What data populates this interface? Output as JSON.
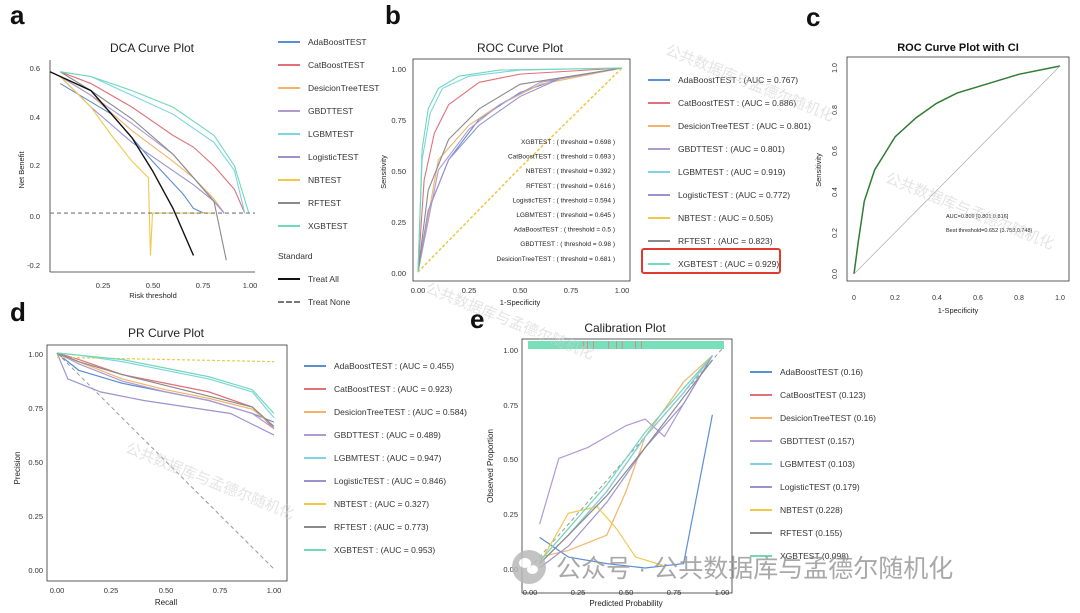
{
  "panel_letters": {
    "a": "a",
    "b": "b",
    "c": "c",
    "d": "d",
    "e": "e"
  },
  "colors": {
    "AdaBoostTEST": "#5b8fd4",
    "CatBoostTEST": "#e0707a",
    "DesicionTreeTEST": "#f2b46a",
    "GBDTTEST": "#b09ad2",
    "LGBMTEST": "#7fd3e6",
    "LogisticTEST": "#9b93cf",
    "NBTEST": "#f0c84a",
    "RFTEST": "#8a8a8a",
    "XGBTEST": "#6fd9b8",
    "highlight": "#e03a2f",
    "ci_curve": "#2e7d32"
  },
  "dca": {
    "title": "DCA Curve Plot",
    "xlabel": "Risk threshold",
    "ylabel": "Net Benefit",
    "xticks": [
      "0.25",
      "0.50",
      "0.75",
      "1.00"
    ],
    "yticks": [
      "0.6",
      "0.4",
      "0.2",
      "0.0",
      "-0.2"
    ],
    "legend": [
      "AdaBoostTEST",
      "CatBoostTEST",
      "DesicionTreeTEST",
      "GBDTTEST",
      "LGBMTEST",
      "LogisticTEST",
      "NBTEST",
      "RFTEST",
      "XGBTEST"
    ],
    "standard_title": "Standard",
    "standard": [
      "Treat All",
      "Treat None"
    ]
  },
  "roc": {
    "title": "ROC Curve Plot",
    "xlabel": "1-Specificity",
    "ylabel": "Sensitivity",
    "xticks": [
      "0.00",
      "0.25",
      "0.50",
      "0.75",
      "1.00"
    ],
    "yticks": [
      "1.00",
      "0.75",
      "0.50",
      "0.25",
      "0.00"
    ],
    "thresholds": [
      "XGBTEST : ( threshold = 0.698 )",
      "CatBoostTEST : ( threshold = 0.693 )",
      "NBTEST : ( threshold = 0.392 )",
      "RFTEST : ( threshold = 0.616 )",
      "LogisticTEST : ( threshold = 0.594 )",
      "LGBMTEST : ( threshold = 0.645 )",
      "AdaBoostTEST : ( threshold = 0.5 )",
      "GBDTTEST : ( threshold = 0.98 )",
      "DesicionTreeTEST : ( threshold = 0.681 )"
    ],
    "legend": [
      "AdaBoostTEST : (AUC = 0.767)",
      "CatBoostTEST : (AUC = 0.886)",
      "DesicionTreeTEST : (AUC = 0.801)",
      "GBDTTEST : (AUC = 0.801)",
      "LGBMTEST : (AUC = 0.919)",
      "LogisticTEST : (AUC = 0.772)",
      "NBTEST : (AUC = 0.505)",
      "RFTEST : (AUC = 0.823)",
      "XGBTEST : (AUC = 0.929)"
    ]
  },
  "roc_ci": {
    "title": "ROC Curve Plot with CI",
    "xlabel": "1-Specificity",
    "ylabel": "Sensitivity",
    "xticks": [
      "0",
      "0.2",
      "0.4",
      "0.6",
      "0.8",
      "1.0"
    ],
    "yticks": [
      "1.0",
      "0.8",
      "0.6",
      "0.4",
      "0.2",
      "0.0"
    ],
    "auc_text": "AUC=0.809 [0.801 0.816]",
    "best_text": "Best threshold=0.652 (3.753,0.748)"
  },
  "pr": {
    "title": "PR Curve Plot",
    "xlabel": "Recall",
    "ylabel": "Precision",
    "xticks": [
      "0.00",
      "0.25",
      "0.50",
      "0.75",
      "1.00"
    ],
    "yticks": [
      "1.00",
      "0.75",
      "0.50",
      "0.25",
      "0.00"
    ],
    "legend": [
      "AdaBoostTEST : (AUC = 0.455)",
      "CatBoostTEST : (AUC = 0.923)",
      "DesicionTreeTEST : (AUC = 0.584)",
      "GBDTTEST : (AUC = 0.489)",
      "LGBMTEST : (AUC = 0.947)",
      "LogisticTEST : (AUC = 0.846)",
      "NBTEST : (AUC = 0.327)",
      "RFTEST : (AUC = 0.773)",
      "XGBTEST : (AUC = 0.953)"
    ]
  },
  "calib": {
    "title": "Calibration Plot",
    "xlabel": "Predicted Probability",
    "ylabel": "Observed Proportion",
    "xticks": [
      "0.00",
      "0.25",
      "0.50",
      "0.75",
      "1.00"
    ],
    "yticks": [
      "1.00",
      "0.75",
      "0.50",
      "0.25",
      "0.00"
    ],
    "legend": [
      "AdaBoostTEST (0.16)",
      "CatBoostTEST (0.123)",
      "DesicionTreeTEST (0.16)",
      "GBDTTEST (0.157)",
      "LGBMTEST (0.103)",
      "LogisticTEST (0.179)",
      "NBTEST (0.228)",
      "RFTEST (0.155)",
      "XGBTEST (0.098)"
    ]
  },
  "watermark": {
    "diag": "公共数据库与孟德尔随机化",
    "banner": "公众号 · 公共数据库与孟德尔随机化"
  },
  "chart_data": [
    {
      "type": "line",
      "title": "DCA Curve Plot",
      "xlabel": "Risk threshold",
      "ylabel": "Net Benefit",
      "xlim": [
        0,
        1
      ],
      "ylim": [
        -0.25,
        0.65
      ],
      "grid": false,
      "legend_position": "right",
      "series": [
        {
          "name": "AdaBoostTEST",
          "x": [
            0.05,
            0.3,
            0.5,
            0.65,
            0.7,
            0.75
          ],
          "y": [
            0.55,
            0.42,
            0.22,
            0.08,
            0.02,
            0.0
          ]
        },
        {
          "name": "CatBoostTEST",
          "x": [
            0.05,
            0.2,
            0.4,
            0.6,
            0.7,
            0.8,
            0.85,
            0.9,
            0.95
          ],
          "y": [
            0.6,
            0.55,
            0.45,
            0.33,
            0.28,
            0.2,
            0.15,
            0.1,
            0.0
          ]
        },
        {
          "name": "DesicionTreeTEST",
          "x": [
            0.05,
            0.2,
            0.4,
            0.6,
            0.7,
            0.8,
            0.85
          ],
          "y": [
            0.58,
            0.5,
            0.35,
            0.22,
            0.15,
            0.06,
            0.0
          ]
        },
        {
          "name": "GBDTTEST",
          "x": [
            0.05,
            0.2,
            0.4,
            0.6,
            0.7,
            0.8,
            0.85
          ],
          "y": [
            0.58,
            0.5,
            0.38,
            0.25,
            0.15,
            0.05,
            0.0
          ]
        },
        {
          "name": "LGBMTEST",
          "x": [
            0.05,
            0.2,
            0.4,
            0.6,
            0.8,
            0.9,
            0.95
          ],
          "y": [
            0.6,
            0.58,
            0.5,
            0.42,
            0.3,
            0.18,
            0.0
          ]
        },
        {
          "name": "LogisticTEST",
          "x": [
            0.05,
            0.2,
            0.4,
            0.6,
            0.7,
            0.8,
            0.85
          ],
          "y": [
            0.58,
            0.45,
            0.3,
            0.18,
            0.12,
            0.05,
            0.0
          ]
        },
        {
          "name": "NBTEST",
          "x": [
            0.05,
            0.2,
            0.3,
            0.4,
            0.48,
            0.49,
            0.5,
            0.8
          ],
          "y": [
            0.58,
            0.45,
            0.33,
            0.22,
            0.15,
            -0.18,
            0.0,
            0.0
          ]
        },
        {
          "name": "RFTEST",
          "x": [
            0.05,
            0.2,
            0.4,
            0.6,
            0.7,
            0.8,
            0.86
          ],
          "y": [
            0.6,
            0.52,
            0.4,
            0.25,
            0.15,
            0.05,
            -0.2
          ]
        },
        {
          "name": "XGBTEST",
          "x": [
            0.05,
            0.2,
            0.4,
            0.6,
            0.8,
            0.9,
            0.97
          ],
          "y": [
            0.6,
            0.58,
            0.52,
            0.45,
            0.33,
            0.2,
            0.0
          ]
        },
        {
          "name": "Treat All",
          "x": [
            0.0,
            0.2,
            0.4,
            0.5,
            0.6,
            0.7
          ],
          "y": [
            0.6,
            0.52,
            0.32,
            0.18,
            0.02,
            -0.18
          ]
        },
        {
          "name": "Treat None",
          "x": [
            0,
            1
          ],
          "y": [
            0,
            0
          ]
        }
      ]
    },
    {
      "type": "line",
      "title": "ROC Curve Plot",
      "xlabel": "1-Specificity",
      "ylabel": "Sensitivity",
      "xlim": [
        0,
        1
      ],
      "ylim": [
        0,
        1
      ],
      "grid": false,
      "legend_position": "right",
      "series": [
        {
          "name": "AdaBoostTEST",
          "x": [
            0,
            0.05,
            0.15,
            0.3,
            0.5,
            0.7,
            1
          ],
          "y": [
            0,
            0.3,
            0.55,
            0.75,
            0.88,
            0.95,
            1
          ]
        },
        {
          "name": "CatBoostTEST",
          "x": [
            0,
            0.03,
            0.08,
            0.15,
            0.3,
            0.5,
            1
          ],
          "y": [
            0,
            0.45,
            0.68,
            0.82,
            0.93,
            0.97,
            1
          ]
        },
        {
          "name": "DesicionTreeTEST",
          "x": [
            0,
            0.1,
            0.25,
            0.4,
            0.6,
            1
          ],
          "y": [
            0,
            0.55,
            0.72,
            0.82,
            0.92,
            1
          ]
        },
        {
          "name": "GBDTTEST",
          "x": [
            0,
            0.1,
            0.25,
            0.4,
            0.6,
            1
          ],
          "y": [
            0,
            0.5,
            0.7,
            0.82,
            0.93,
            1
          ]
        },
        {
          "name": "LGBMTEST",
          "x": [
            0,
            0.02,
            0.06,
            0.12,
            0.25,
            0.5,
            1
          ],
          "y": [
            0,
            0.55,
            0.78,
            0.9,
            0.96,
            0.99,
            1
          ]
        },
        {
          "name": "LogisticTEST",
          "x": [
            0,
            0.05,
            0.15,
            0.3,
            0.5,
            0.7,
            1
          ],
          "y": [
            0,
            0.3,
            0.55,
            0.72,
            0.86,
            0.95,
            1
          ]
        },
        {
          "name": "NBTEST",
          "x": [
            0,
            0.5,
            1
          ],
          "y": [
            0,
            0.51,
            1
          ]
        },
        {
          "name": "RFTEST",
          "x": [
            0,
            0.05,
            0.15,
            0.3,
            0.5,
            1
          ],
          "y": [
            0,
            0.4,
            0.65,
            0.8,
            0.92,
            1
          ]
        },
        {
          "name": "XGBTEST",
          "x": [
            0,
            0.02,
            0.05,
            0.1,
            0.2,
            0.4,
            1
          ],
          "y": [
            0,
            0.6,
            0.8,
            0.9,
            0.96,
            0.99,
            1
          ]
        }
      ]
    },
    {
      "type": "line",
      "title": "ROC Curve Plot with CI",
      "xlabel": "1-Specificity",
      "ylabel": "Sensitivity",
      "xlim": [
        0,
        1
      ],
      "ylim": [
        0,
        1
      ],
      "grid": false,
      "series": [
        {
          "x": [
            0,
            0.02,
            0.05,
            0.1,
            0.15,
            0.2,
            0.3,
            0.4,
            0.5,
            0.6,
            0.8,
            1.0
          ],
          "y": [
            0,
            0.15,
            0.35,
            0.5,
            0.58,
            0.66,
            0.75,
            0.82,
            0.87,
            0.9,
            0.96,
            1.0
          ]
        },
        {
          "x": [
            0,
            1
          ],
          "y": [
            0,
            1
          ]
        }
      ]
    },
    {
      "type": "line",
      "title": "PR Curve Plot",
      "xlabel": "Recall",
      "ylabel": "Precision",
      "xlim": [
        0,
        1
      ],
      "ylim": [
        0,
        1
      ],
      "grid": false,
      "legend_position": "right",
      "series": [
        {
          "name": "AdaBoostTEST",
          "x": [
            0,
            0.1,
            0.3,
            0.5,
            0.7,
            0.9,
            1.0
          ],
          "y": [
            1,
            0.92,
            0.86,
            0.82,
            0.78,
            0.72,
            0.68
          ]
        },
        {
          "name": "CatBoostTEST",
          "x": [
            0,
            0.1,
            0.3,
            0.5,
            0.7,
            0.9,
            1.0
          ],
          "y": [
            1,
            0.97,
            0.9,
            0.86,
            0.82,
            0.75,
            0.65
          ]
        },
        {
          "name": "DesicionTreeTEST",
          "x": [
            0,
            0.1,
            0.3,
            0.5,
            0.7,
            0.9,
            1.0
          ],
          "y": [
            1,
            0.96,
            0.88,
            0.83,
            0.79,
            0.74,
            0.66
          ]
        },
        {
          "name": "GBDTTEST",
          "x": [
            0,
            0.1,
            0.3,
            0.5,
            0.7,
            0.9,
            1.0
          ],
          "y": [
            1,
            0.95,
            0.87,
            0.82,
            0.78,
            0.72,
            0.65
          ]
        },
        {
          "name": "LGBMTEST",
          "x": [
            0,
            0.1,
            0.3,
            0.5,
            0.7,
            0.9,
            1.0
          ],
          "y": [
            1,
            0.99,
            0.96,
            0.92,
            0.88,
            0.82,
            0.7
          ]
        },
        {
          "name": "LogisticTEST",
          "x": [
            0,
            0.05,
            0.2,
            0.4,
            0.6,
            0.8,
            1.0
          ],
          "y": [
            1,
            0.88,
            0.82,
            0.78,
            0.75,
            0.72,
            0.62
          ]
        },
        {
          "name": "NBTEST",
          "x": [
            0,
            1
          ],
          "y": [
            0.98,
            0.96
          ]
        },
        {
          "name": "RFTEST",
          "x": [
            0,
            0.1,
            0.3,
            0.5,
            0.7,
            0.9,
            1.0
          ],
          "y": [
            1,
            0.96,
            0.9,
            0.85,
            0.8,
            0.75,
            0.66
          ]
        },
        {
          "name": "XGBTEST",
          "x": [
            0,
            0.1,
            0.3,
            0.5,
            0.7,
            0.9,
            1.0
          ],
          "y": [
            1,
            0.99,
            0.97,
            0.93,
            0.89,
            0.83,
            0.72
          ]
        }
      ]
    },
    {
      "type": "line",
      "title": "Calibration Plot",
      "xlabel": "Predicted Probability",
      "ylabel": "Observed Proportion",
      "xlim": [
        0,
        1
      ],
      "ylim": [
        0,
        1
      ],
      "grid": false,
      "legend_position": "right",
      "series": [
        {
          "name": "AdaBoostTEST",
          "x": [
            0.05,
            0.2,
            0.4,
            0.6,
            0.8,
            0.95
          ],
          "y": [
            0.14,
            0.05,
            0.02,
            0.0,
            0.02,
            0.7
          ]
        },
        {
          "name": "CatBoostTEST",
          "x": [
            0.05,
            0.2,
            0.4,
            0.6,
            0.8,
            0.95
          ],
          "y": [
            0.02,
            0.15,
            0.35,
            0.6,
            0.8,
            0.97
          ]
        },
        {
          "name": "DesicionTreeTEST",
          "x": [
            0.05,
            0.2,
            0.4,
            0.5,
            0.6,
            0.8,
            0.95
          ],
          "y": [
            0.05,
            0.08,
            0.15,
            0.35,
            0.6,
            0.85,
            0.97
          ]
        },
        {
          "name": "GBDTTEST",
          "x": [
            0.05,
            0.15,
            0.3,
            0.5,
            0.6,
            0.7,
            0.8,
            0.95
          ],
          "y": [
            0.2,
            0.5,
            0.55,
            0.65,
            0.68,
            0.6,
            0.75,
            0.97
          ]
        },
        {
          "name": "LGBMTEST",
          "x": [
            0.05,
            0.2,
            0.4,
            0.6,
            0.8,
            0.95
          ],
          "y": [
            0.02,
            0.15,
            0.35,
            0.6,
            0.8,
            0.97
          ]
        },
        {
          "name": "LogisticTEST",
          "x": [
            0.05,
            0.2,
            0.4,
            0.6,
            0.8,
            0.95
          ],
          "y": [
            0.0,
            0.1,
            0.3,
            0.55,
            0.75,
            0.97
          ]
        },
        {
          "name": "NBTEST",
          "x": [
            0.05,
            0.2,
            0.35,
            0.45,
            0.55,
            0.7
          ],
          "y": [
            0.02,
            0.25,
            0.28,
            0.18,
            0.05,
            0.01
          ]
        },
        {
          "name": "RFTEST",
          "x": [
            0.05,
            0.2,
            0.4,
            0.6,
            0.8,
            0.95
          ],
          "y": [
            0.02,
            0.15,
            0.33,
            0.55,
            0.78,
            0.95
          ]
        },
        {
          "name": "XGBTEST",
          "x": [
            0.05,
            0.2,
            0.4,
            0.6,
            0.8,
            0.95
          ],
          "y": [
            0.03,
            0.18,
            0.38,
            0.62,
            0.82,
            0.97
          ]
        }
      ]
    }
  ]
}
